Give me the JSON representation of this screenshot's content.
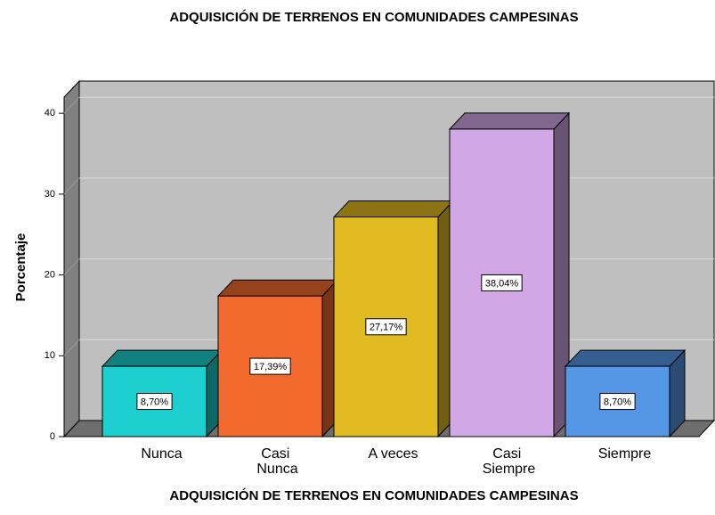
{
  "chart_data": {
    "type": "bar3d",
    "title": "ADQUISICIÓN DE TERRENOS EN COMUNIDADES CAMPESINAS",
    "x_label": "ADQUISICIÓN DE TERRENOS EN COMUNIDADES CAMPESINAS",
    "y_label": "Porcentaje",
    "categories": [
      "Nunca",
      "Casi Nunca",
      "A veces",
      "Casi Siempre",
      "Siempre"
    ],
    "values": [
      8.7,
      17.39,
      27.17,
      38.04,
      8.7
    ],
    "value_labels": [
      "8,70%",
      "17,39%",
      "27,17%",
      "38,04%",
      "8,70%"
    ],
    "colors": [
      "#1ecfcf",
      "#f26a2d",
      "#e1bb22",
      "#d1a7e6",
      "#5596e6"
    ],
    "ylim": [
      0,
      42
    ],
    "yticks": [
      0,
      10,
      20,
      30,
      40
    ],
    "grid": true
  }
}
